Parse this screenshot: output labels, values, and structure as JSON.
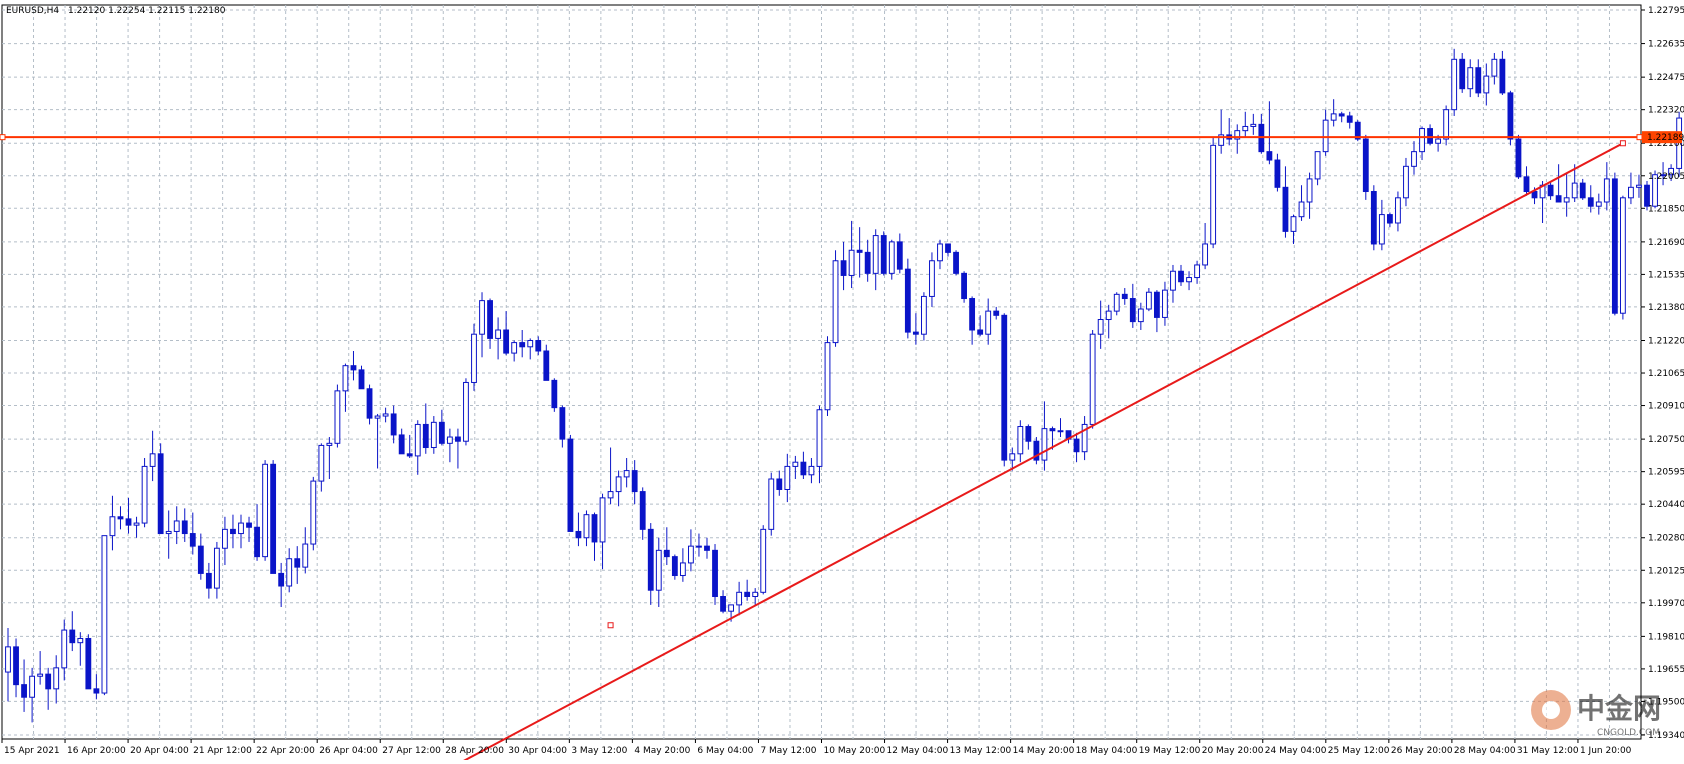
{
  "window": {
    "symbol_tf": "EURUSD,H4",
    "ohlc": "1.22120 1.22254 1.22115 1.22180"
  },
  "watermark": {
    "cn": "中金网",
    "url": "CNGOLD.COM"
  },
  "colors": {
    "grid": "#b4bec8",
    "candle": "#0a14c8",
    "hline": "#ff3300",
    "trendline": "#e81a1a",
    "price_label_bg": "#ff4400",
    "background": "#ffffff"
  },
  "chart_data": {
    "type": "candlestick",
    "title": "EURUSD,H4",
    "ylim": [
      1.1934,
      1.22795
    ],
    "y_ticks": [
      "1.22795",
      "1.22635",
      "1.22475",
      "1.22320",
      "1.22160",
      "1.22005",
      "1.21850",
      "1.21690",
      "1.21535",
      "1.21380",
      "1.21220",
      "1.21065",
      "1.20910",
      "1.20750",
      "1.20595",
      "1.20440",
      "1.20280",
      "1.20125",
      "1.19970",
      "1.19810",
      "1.19655",
      "1.19500",
      "1.19340"
    ],
    "x_ticks": [
      "15 Apr 2021",
      "16 Apr 20:00",
      "20 Apr 04:00",
      "21 Apr 12:00",
      "22 Apr 20:00",
      "26 Apr 04:00",
      "27 Apr 12:00",
      "28 Apr 20:00",
      "30 Apr 04:00",
      "3 May 12:00",
      "4 May 20:00",
      "6 May 04:00",
      "7 May 12:00",
      "10 May 20:00",
      "12 May 04:00",
      "13 May 12:00",
      "14 May 20:00",
      "18 May 04:00",
      "19 May 12:00",
      "20 May 20:00",
      "24 May 04:00",
      "25 May 12:00",
      "26 May 20:00",
      "28 May 04:00",
      "31 May 12:00",
      "1 Jun 20:00"
    ],
    "hline": {
      "price": 1.22189,
      "label": "1.22189"
    },
    "trendline": {
      "from": {
        "bar": 51,
        "price": 1.191
      },
      "to": {
        "bar": 201,
        "price": 1.2216
      }
    },
    "trendline_anchor": {
      "bar": 75,
      "price": 1.19863
    },
    "grid": true,
    "candles": [
      [
        1.1964,
        1.1985,
        1.195,
        1.1976
      ],
      [
        1.1976,
        1.198,
        1.1952,
        1.1958
      ],
      [
        1.1958,
        1.197,
        1.1945,
        1.1952
      ],
      [
        1.1952,
        1.1966,
        1.194,
        1.1962
      ],
      [
        1.1962,
        1.1974,
        1.1958,
        1.1963
      ],
      [
        1.1963,
        1.1966,
        1.1946,
        1.1956
      ],
      [
        1.1956,
        1.1972,
        1.1949,
        1.1966
      ],
      [
        1.1966,
        1.1989,
        1.196,
        1.1984
      ],
      [
        1.1984,
        1.1993,
        1.1974,
        1.1978
      ],
      [
        1.1978,
        1.1983,
        1.1967,
        1.198
      ],
      [
        1.198,
        1.1982,
        1.1956,
        1.1956
      ],
      [
        1.1956,
        1.1963,
        1.1951,
        1.1954
      ],
      [
        1.1954,
        1.2029,
        1.1953,
        1.2029
      ],
      [
        1.2029,
        1.2048,
        1.2022,
        1.2038
      ],
      [
        1.2038,
        1.2043,
        1.2032,
        1.2037
      ],
      [
        1.2037,
        1.2047,
        1.203,
        1.2034
      ],
      [
        1.2034,
        1.2038,
        1.2028,
        1.2035
      ],
      [
        1.2035,
        1.2066,
        1.2033,
        1.2062
      ],
      [
        1.2062,
        1.2079,
        1.2055,
        1.2068
      ],
      [
        1.2068,
        1.2073,
        1.203,
        1.203
      ],
      [
        1.203,
        1.2041,
        1.2018,
        1.2031
      ],
      [
        1.2031,
        1.2043,
        1.2025,
        1.2036
      ],
      [
        1.2036,
        1.2042,
        1.2026,
        1.203
      ],
      [
        1.203,
        1.204,
        1.202,
        1.2024
      ],
      [
        1.2024,
        1.203,
        1.2008,
        1.2011
      ],
      [
        1.2011,
        1.2016,
        1.1999,
        1.2004
      ],
      [
        1.2004,
        1.2026,
        1.1999,
        1.2023
      ],
      [
        1.2023,
        1.2038,
        1.2015,
        1.2032
      ],
      [
        1.2032,
        1.2039,
        1.2023,
        1.203
      ],
      [
        1.203,
        1.2039,
        1.2023,
        1.2035
      ],
      [
        1.2035,
        1.2038,
        1.2026,
        1.2033
      ],
      [
        1.2033,
        1.2044,
        1.2017,
        1.2019
      ],
      [
        1.2019,
        1.2065,
        1.2017,
        1.2063
      ],
      [
        1.2063,
        1.2065,
        1.2012,
        1.2011
      ],
      [
        1.2011,
        1.2016,
        1.1995,
        1.2005
      ],
      [
        1.2005,
        1.2023,
        1.2002,
        1.2018
      ],
      [
        1.2018,
        1.2024,
        1.2006,
        1.2014
      ],
      [
        1.2014,
        1.2033,
        1.2011,
        1.2025
      ],
      [
        1.2025,
        1.2057,
        1.2022,
        1.2055
      ],
      [
        1.2055,
        1.2073,
        1.205,
        1.2072
      ],
      [
        1.2072,
        1.2076,
        1.2056,
        1.2073
      ],
      [
        1.2073,
        1.2101,
        1.2071,
        1.2098
      ],
      [
        1.2098,
        1.2111,
        1.2088,
        1.211
      ],
      [
        1.211,
        1.2117,
        1.2103,
        1.2108
      ],
      [
        1.2108,
        1.211,
        1.2099,
        1.2099
      ],
      [
        1.2099,
        1.2101,
        1.2082,
        1.2085
      ],
      [
        1.2085,
        1.2087,
        1.2061,
        1.2086
      ],
      [
        1.2086,
        1.209,
        1.2083,
        1.2087
      ],
      [
        1.2087,
        1.2091,
        1.2073,
        1.2077
      ],
      [
        1.2077,
        1.208,
        1.2068,
        1.2068
      ],
      [
        1.2068,
        1.2077,
        1.2066,
        1.2067
      ],
      [
        1.2067,
        1.2084,
        1.2058,
        1.2082
      ],
      [
        1.2082,
        1.2092,
        1.2068,
        1.2071
      ],
      [
        1.2071,
        1.2086,
        1.2068,
        1.2083
      ],
      [
        1.2083,
        1.2089,
        1.2072,
        1.2073
      ],
      [
        1.2073,
        1.208,
        1.2064,
        1.2076
      ],
      [
        1.2076,
        1.208,
        1.2061,
        1.2074
      ],
      [
        1.2074,
        1.2104,
        1.2072,
        1.2102
      ],
      [
        1.2102,
        1.213,
        1.2098,
        1.2125
      ],
      [
        1.2125,
        1.2145,
        1.2114,
        1.2141
      ],
      [
        1.2141,
        1.2142,
        1.2118,
        1.2123
      ],
      [
        1.2123,
        1.2133,
        1.2113,
        1.2127
      ],
      [
        1.2127,
        1.2136,
        1.2115,
        1.2116
      ],
      [
        1.2116,
        1.2122,
        1.2112,
        1.2121
      ],
      [
        1.2121,
        1.2127,
        1.2114,
        1.2119
      ],
      [
        1.2119,
        1.2123,
        1.2113,
        1.2122
      ],
      [
        1.2122,
        1.2124,
        1.2115,
        1.2117
      ],
      [
        1.2117,
        1.212,
        1.2103,
        1.2103
      ],
      [
        1.2103,
        1.2104,
        1.2088,
        1.209
      ],
      [
        1.209,
        1.2091,
        1.2071,
        1.2075
      ],
      [
        1.2075,
        1.2077,
        1.2031,
        1.2031
      ],
      [
        1.2031,
        1.204,
        1.2024,
        1.2028
      ],
      [
        1.2028,
        1.2041,
        1.2024,
        1.2039
      ],
      [
        1.2039,
        1.204,
        1.2017,
        1.2026
      ],
      [
        1.2026,
        1.2049,
        1.2013,
        1.2047
      ],
      [
        1.2047,
        1.2071,
        1.2044,
        1.205
      ],
      [
        1.205,
        1.206,
        1.2043,
        1.2057
      ],
      [
        1.2057,
        1.2066,
        1.2052,
        1.206
      ],
      [
        1.206,
        1.2065,
        1.2044,
        1.205
      ],
      [
        1.205,
        1.2052,
        1.2027,
        1.2032
      ],
      [
        1.2032,
        1.2035,
        1.1996,
        1.2003
      ],
      [
        1.2003,
        1.2028,
        1.1995,
        1.2022
      ],
      [
        1.2022,
        1.2033,
        1.2015,
        1.2019
      ],
      [
        1.2019,
        1.202,
        1.2008,
        1.201
      ],
      [
        1.201,
        1.2023,
        1.2007,
        1.2016
      ],
      [
        1.2016,
        1.2032,
        1.2012,
        1.2024
      ],
      [
        1.2024,
        1.203,
        1.2019,
        1.2024
      ],
      [
        1.2024,
        1.2028,
        1.2018,
        1.2022
      ],
      [
        1.2022,
        1.2025,
        1.1996,
        1.2
      ],
      [
        1.2,
        1.2003,
        1.1992,
        1.1993
      ],
      [
        1.1993,
        1.1996,
        1.1988,
        1.1996
      ],
      [
        1.1996,
        1.2007,
        1.1991,
        1.2002
      ],
      [
        1.2002,
        1.2008,
        1.1998,
        1.2
      ],
      [
        1.2,
        1.2004,
        1.1996,
        1.2002
      ],
      [
        1.2002,
        1.2034,
        1.2001,
        1.2032
      ],
      [
        1.2032,
        1.2059,
        1.2029,
        1.2056
      ],
      [
        1.2056,
        1.206,
        1.2048,
        1.2051
      ],
      [
        1.2051,
        1.2068,
        1.2045,
        1.2062
      ],
      [
        1.2062,
        1.2067,
        1.2056,
        1.2064
      ],
      [
        1.2064,
        1.2069,
        1.2056,
        1.2058
      ],
      [
        1.2058,
        1.2066,
        1.2054,
        1.2062
      ],
      [
        1.2062,
        1.2091,
        1.2054,
        1.2089
      ],
      [
        1.2089,
        1.2124,
        1.2086,
        1.2121
      ],
      [
        1.2121,
        1.2165,
        1.2119,
        1.216
      ],
      [
        1.216,
        1.2169,
        1.2146,
        1.2153
      ],
      [
        1.2153,
        1.2179,
        1.2147,
        1.2165
      ],
      [
        1.2165,
        1.2176,
        1.2152,
        1.2164
      ],
      [
        1.2164,
        1.217,
        1.215,
        1.2154
      ],
      [
        1.2154,
        1.2175,
        1.2146,
        1.2172
      ],
      [
        1.2172,
        1.2174,
        1.2153,
        1.2154
      ],
      [
        1.2154,
        1.217,
        1.2151,
        1.2169
      ],
      [
        1.2169,
        1.2173,
        1.2154,
        1.2156
      ],
      [
        1.2156,
        1.2161,
        1.2123,
        1.2126
      ],
      [
        1.2126,
        1.2135,
        1.212,
        1.2125
      ],
      [
        1.2125,
        1.2145,
        1.2122,
        1.2143
      ],
      [
        1.2143,
        1.2164,
        1.2138,
        1.216
      ],
      [
        1.216,
        1.217,
        1.2156,
        1.2168
      ],
      [
        1.2168,
        1.2168,
        1.2162,
        1.2164
      ],
      [
        1.2164,
        1.2165,
        1.2153,
        1.2154
      ],
      [
        1.2154,
        1.2155,
        1.214,
        1.2142
      ],
      [
        1.2142,
        1.2143,
        1.212,
        1.2127
      ],
      [
        1.2127,
        1.2134,
        1.2124,
        1.2125
      ],
      [
        1.2125,
        1.2142,
        1.212,
        1.2136
      ],
      [
        1.2136,
        1.2138,
        1.2132,
        1.2134
      ],
      [
        1.2134,
        1.2135,
        1.2062,
        1.2065
      ],
      [
        1.2065,
        1.2071,
        1.206,
        1.2068
      ],
      [
        1.2068,
        1.2084,
        1.2064,
        1.2081
      ],
      [
        1.2081,
        1.2082,
        1.207,
        1.2074
      ],
      [
        1.2074,
        1.2076,
        1.2063,
        1.2065
      ],
      [
        1.2065,
        1.2093,
        1.206,
        1.208
      ],
      [
        1.208,
        1.2081,
        1.207,
        1.2079
      ],
      [
        1.2079,
        1.2085,
        1.2076,
        1.2079
      ],
      [
        1.2079,
        1.2079,
        1.2073,
        1.2075
      ],
      [
        1.2075,
        1.2078,
        1.2064,
        1.2069
      ],
      [
        1.2069,
        1.2086,
        1.2065,
        1.2082
      ],
      [
        1.2082,
        1.2127,
        1.208,
        1.2125
      ],
      [
        1.2125,
        1.2141,
        1.2118,
        1.2132
      ],
      [
        1.2132,
        1.2139,
        1.2123,
        1.2136
      ],
      [
        1.2136,
        1.2145,
        1.2134,
        1.2144
      ],
      [
        1.2144,
        1.2147,
        1.2139,
        1.2142
      ],
      [
        1.2142,
        1.2149,
        1.2128,
        1.2131
      ],
      [
        1.2131,
        1.214,
        1.2127,
        1.2137
      ],
      [
        1.2137,
        1.2147,
        1.2136,
        1.2145
      ],
      [
        1.2145,
        1.2146,
        1.2126,
        1.2133
      ],
      [
        1.2133,
        1.215,
        1.2129,
        1.2146
      ],
      [
        1.2146,
        1.2158,
        1.214,
        1.2155
      ],
      [
        1.2155,
        1.2158,
        1.2148,
        1.215
      ],
      [
        1.215,
        1.2155,
        1.2146,
        1.2152
      ],
      [
        1.2152,
        1.216,
        1.2149,
        1.2158
      ],
      [
        1.2158,
        1.2178,
        1.2156,
        1.2168
      ],
      [
        1.2168,
        1.2219,
        1.2166,
        1.2215
      ],
      [
        1.2215,
        1.2232,
        1.2211,
        1.222
      ],
      [
        1.222,
        1.2228,
        1.2215,
        1.2218
      ],
      [
        1.2218,
        1.2225,
        1.2211,
        1.2222
      ],
      [
        1.2222,
        1.2231,
        1.2219,
        1.2224
      ],
      [
        1.2224,
        1.223,
        1.222,
        1.2225
      ],
      [
        1.2225,
        1.223,
        1.2211,
        1.2212
      ],
      [
        1.2212,
        1.2236,
        1.2206,
        1.2208
      ],
      [
        1.2208,
        1.2211,
        1.2193,
        1.2195
      ],
      [
        1.2195,
        1.2205,
        1.2171,
        1.2174
      ],
      [
        1.2174,
        1.2182,
        1.2168,
        1.2181
      ],
      [
        1.2181,
        1.2196,
        1.2179,
        1.2188
      ],
      [
        1.2188,
        1.2202,
        1.218,
        1.2199
      ],
      [
        1.2199,
        1.2212,
        1.2196,
        1.2212
      ],
      [
        1.2212,
        1.2232,
        1.221,
        1.2227
      ],
      [
        1.2227,
        1.2237,
        1.2224,
        1.223
      ],
      [
        1.223,
        1.2231,
        1.2226,
        1.2229
      ],
      [
        1.2229,
        1.2231,
        1.2223,
        1.2226
      ],
      [
        1.2226,
        1.2227,
        1.2217,
        1.2218
      ],
      [
        1.2218,
        1.222,
        1.2189,
        1.2193
      ],
      [
        1.2193,
        1.2196,
        1.2165,
        1.2168
      ],
      [
        1.2168,
        1.2189,
        1.2165,
        1.2182
      ],
      [
        1.2182,
        1.2183,
        1.2176,
        1.2178
      ],
      [
        1.2178,
        1.2193,
        1.2174,
        1.219
      ],
      [
        1.219,
        1.2209,
        1.2186,
        1.2205
      ],
      [
        1.2205,
        1.2217,
        1.2201,
        1.2212
      ],
      [
        1.2212,
        1.2224,
        1.2208,
        1.2223
      ],
      [
        1.2223,
        1.2225,
        1.2215,
        1.2216
      ],
      [
        1.2216,
        1.222,
        1.2212,
        1.2218
      ],
      [
        1.2218,
        1.2234,
        1.2215,
        1.2232
      ],
      [
        1.2232,
        1.2261,
        1.2229,
        1.2256
      ],
      [
        1.2256,
        1.2259,
        1.224,
        1.2242
      ],
      [
        1.2242,
        1.2256,
        1.2238,
        1.2252
      ],
      [
        1.2252,
        1.2256,
        1.2238,
        1.224
      ],
      [
        1.224,
        1.2254,
        1.2234,
        1.2248
      ],
      [
        1.2248,
        1.2259,
        1.2244,
        1.2256
      ],
      [
        1.2256,
        1.226,
        1.2239,
        1.224
      ],
      [
        1.224,
        1.2241,
        1.2215,
        1.2218
      ],
      [
        1.2218,
        1.222,
        1.2199,
        1.22
      ],
      [
        1.22,
        1.2205,
        1.2191,
        1.2193
      ],
      [
        1.2193,
        1.2195,
        1.2187,
        1.219
      ],
      [
        1.219,
        1.2198,
        1.2178,
        1.2196
      ],
      [
        1.2196,
        1.2198,
        1.2189,
        1.2191
      ],
      [
        1.2191,
        1.2206,
        1.2188,
        1.2188
      ],
      [
        1.2188,
        1.2202,
        1.2181,
        1.219
      ],
      [
        1.219,
        1.2206,
        1.2188,
        1.2197
      ],
      [
        1.2197,
        1.2199,
        1.2189,
        1.219
      ],
      [
        1.219,
        1.2196,
        1.2183,
        1.2186
      ],
      [
        1.2186,
        1.2192,
        1.2182,
        1.2188
      ],
      [
        1.2188,
        1.2207,
        1.2184,
        1.2199
      ],
      [
        1.2199,
        1.2202,
        1.2134,
        1.2135
      ],
      [
        1.2135,
        1.2191,
        1.2132,
        1.219
      ],
      [
        1.219,
        1.2202,
        1.2187,
        1.2195
      ],
      [
        1.2195,
        1.2201,
        1.219,
        1.2196
      ],
      [
        1.2196,
        1.2198,
        1.2184,
        1.2186
      ],
      [
        1.2186,
        1.2203,
        1.2185,
        1.2201
      ],
      [
        1.2201,
        1.2207,
        1.2196,
        1.2201
      ],
      [
        1.2201,
        1.2206,
        1.2198,
        1.2204
      ],
      [
        1.2204,
        1.2231,
        1.22,
        1.2228
      ],
      [
        1.2228,
        1.2231,
        1.222,
        1.2222
      ],
      [
        1.2222,
        1.223,
        1.2215,
        1.2229
      ],
      [
        1.2229,
        1.2232,
        1.2218,
        1.2222
      ],
      [
        1.2222,
        1.2238,
        1.222,
        1.223
      ],
      [
        1.223,
        1.2232,
        1.2218,
        1.2221
      ],
      [
        1.2221,
        1.2252,
        1.2215,
        1.2232
      ],
      [
        1.2232,
        1.2236,
        1.221,
        1.2212
      ],
      [
        1.2212,
        1.22254,
        1.22115,
        1.2218
      ]
    ]
  }
}
